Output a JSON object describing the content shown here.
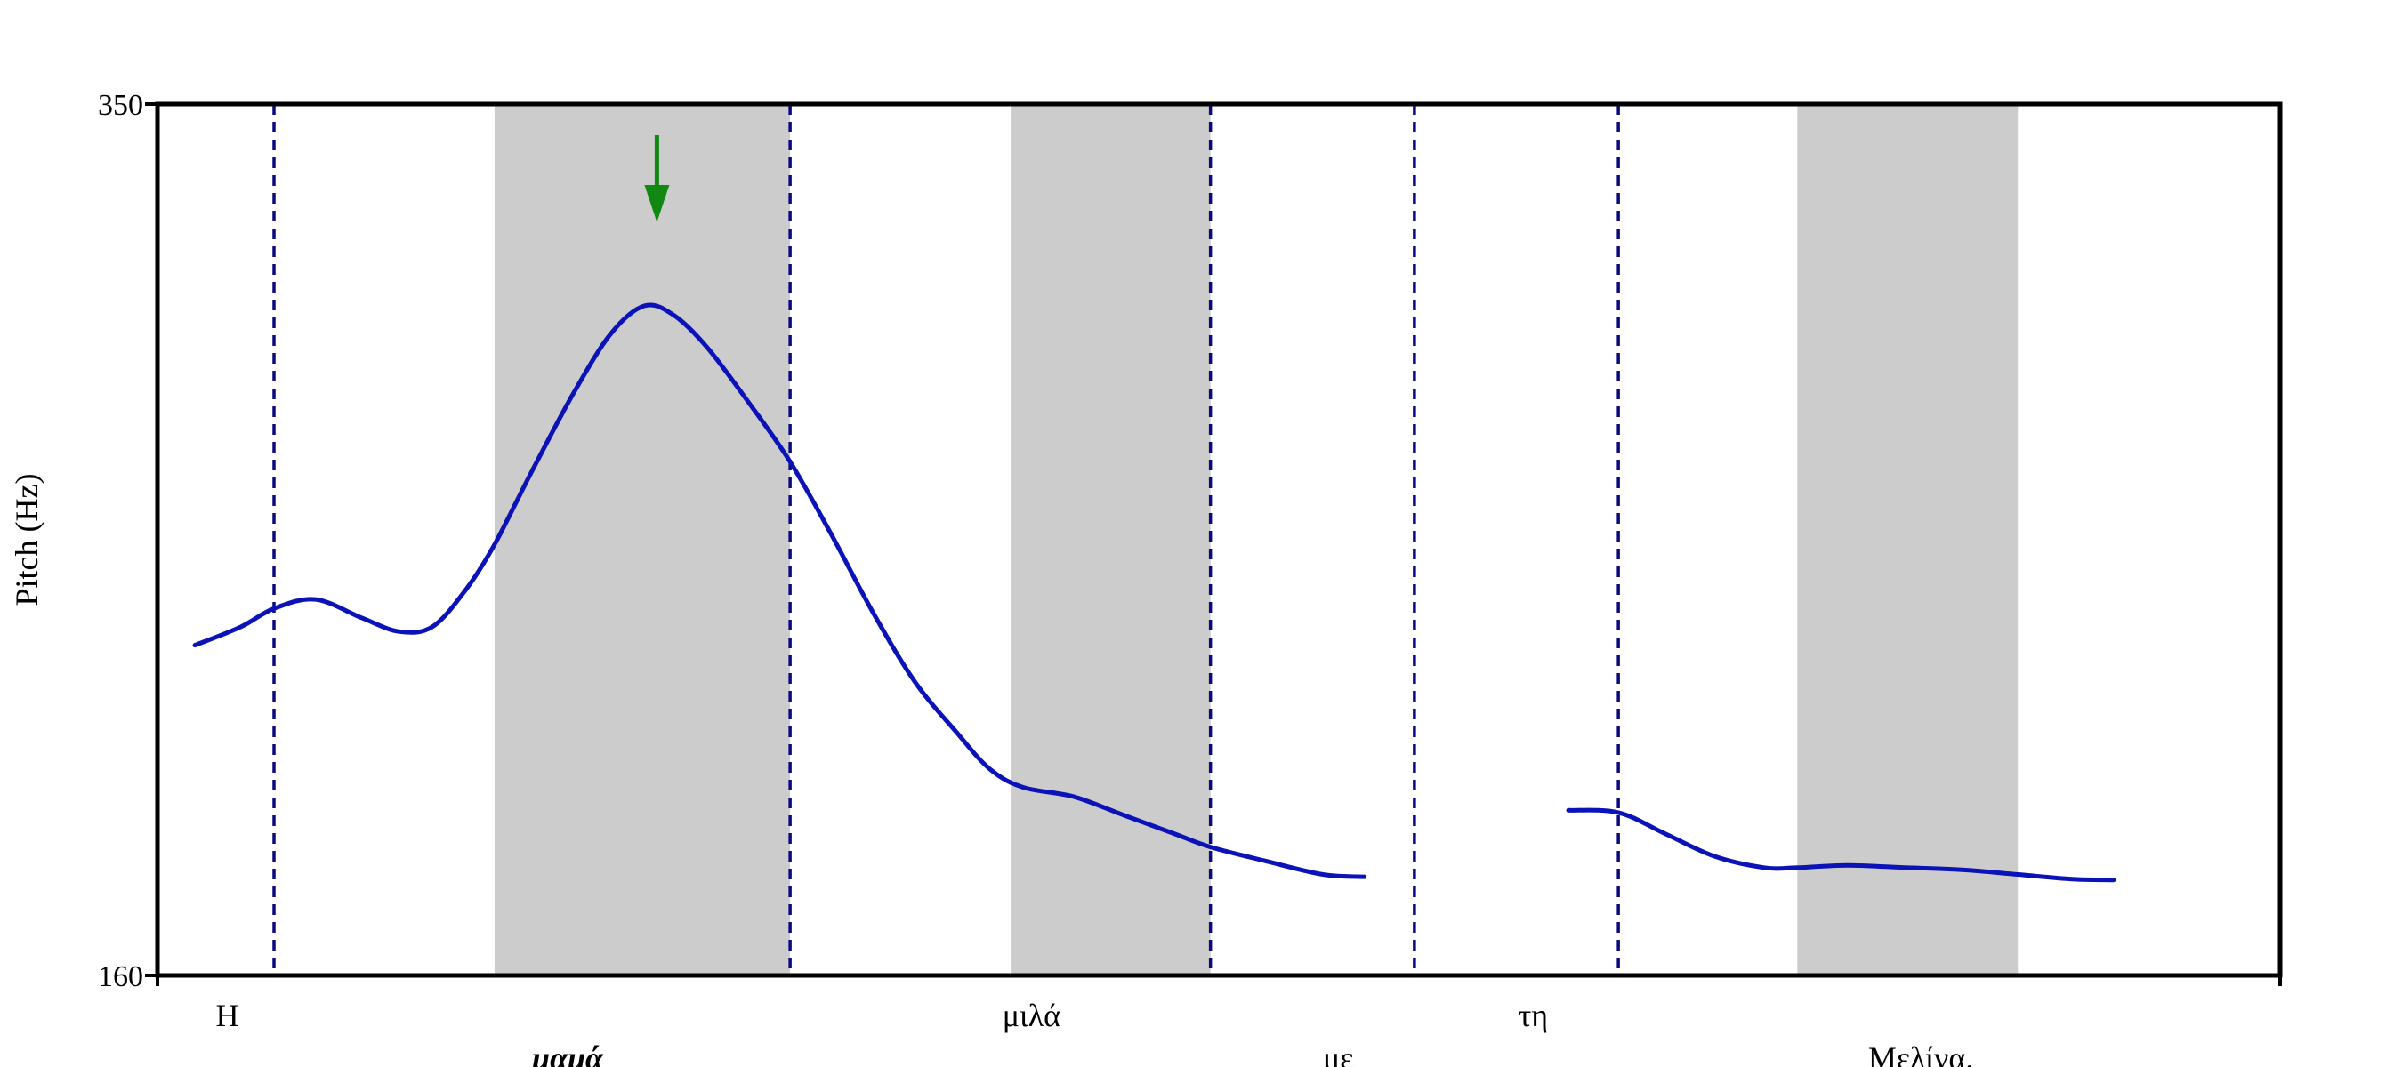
{
  "chart_data": {
    "type": "line",
    "ylabel": "Pitch (Hz)",
    "ylim": [
      160,
      350
    ],
    "y_ticks": [
      {
        "value": 160,
        "label": "160"
      },
      {
        "value": 350,
        "label": "350"
      }
    ],
    "x_range_s": [
      0,
      2.55
    ],
    "shaded_intervals_s": [
      [
        0.405,
        0.76
      ],
      [
        1.025,
        1.265
      ],
      [
        1.97,
        2.235
      ]
    ],
    "boundaries_s": [
      0.14,
      0.76,
      1.265,
      1.51,
      1.755
    ],
    "words": [
      {
        "text": "Η",
        "x_s": 0.07,
        "row": 1,
        "emphasis": false
      },
      {
        "text": "μαμά",
        "x_s": 0.45,
        "row": 2,
        "emphasis": true
      },
      {
        "text": "μιλά",
        "x_s": 1.015,
        "row": 1,
        "emphasis": false
      },
      {
        "text": "με",
        "x_s": 1.4,
        "row": 2,
        "emphasis": false
      },
      {
        "text": "τη",
        "x_s": 1.635,
        "row": 1,
        "emphasis": false
      },
      {
        "text": "Μελίνα.",
        "x_s": 2.055,
        "row": 2,
        "emphasis": false
      }
    ],
    "arrow_x_s": 0.6,
    "series": [
      {
        "color": "#0a12b8",
        "segments": [
          [
            [
              0.045,
              232
            ],
            [
              0.1,
              236
            ],
            [
              0.14,
              240
            ],
            [
              0.19,
              242
            ],
            [
              0.245,
              238
            ],
            [
              0.29,
              235
            ],
            [
              0.33,
              236
            ],
            [
              0.37,
              244
            ],
            [
              0.405,
              254
            ],
            [
              0.45,
              270
            ],
            [
              0.5,
              287
            ],
            [
              0.545,
              300
            ],
            [
              0.585,
              306
            ],
            [
              0.62,
              304
            ],
            [
              0.66,
              297
            ],
            [
              0.71,
              285
            ],
            [
              0.76,
              272
            ],
            [
              0.81,
              256
            ],
            [
              0.86,
              239
            ],
            [
              0.91,
              224
            ],
            [
              0.96,
              213
            ],
            [
              1.0,
              205
            ],
            [
              1.04,
              201
            ],
            [
              1.1,
              199
            ],
            [
              1.16,
              195
            ],
            [
              1.22,
              191
            ],
            [
              1.265,
              188
            ],
            [
              1.33,
              185
            ],
            [
              1.4,
              182
            ],
            [
              1.45,
              181.5
            ]
          ],
          [
            [
              1.695,
              196
            ],
            [
              1.755,
              195.5
            ],
            [
              1.81,
              191
            ],
            [
              1.87,
              186
            ],
            [
              1.93,
              183.5
            ],
            [
              1.97,
              183.5
            ],
            [
              2.03,
              184
            ],
            [
              2.1,
              183.5
            ],
            [
              2.17,
              183
            ],
            [
              2.235,
              182
            ],
            [
              2.3,
              181
            ],
            [
              2.35,
              180.8
            ]
          ]
        ]
      }
    ],
    "grid": false
  }
}
